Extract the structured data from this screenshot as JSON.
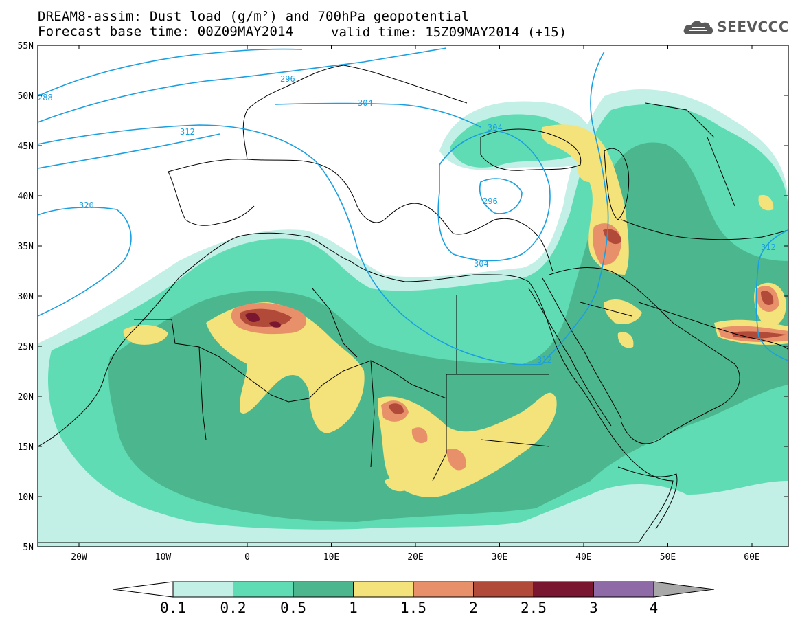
{
  "header": {
    "title_line1": "DREAM8-assim: Dust load (g/m²) and 700hPa geopotential",
    "title_line2": "Forecast base time: 00Z09MAY2014",
    "valid_time": "valid time: 15Z09MAY2014 (+15)",
    "logo_text": "SEEVCCC"
  },
  "axes": {
    "lat_labels": [
      "55N",
      "50N",
      "45N",
      "40N",
      "35N",
      "30N",
      "25N",
      "20N",
      "15N",
      "10N",
      "5N"
    ],
    "lon_labels": [
      "20W",
      "10W",
      "0",
      "10E",
      "20E",
      "30E",
      "40E",
      "50E",
      "60E"
    ]
  },
  "contours": {
    "labels": [
      "288",
      "296",
      "304",
      "312",
      "304",
      "320",
      "296",
      "304",
      "312",
      "312"
    ]
  },
  "colorbar": {
    "labels": [
      "0.1",
      "0.2",
      "0.5",
      "1",
      "1.5",
      "2",
      "2.5",
      "3",
      "4"
    ],
    "colors": [
      "#c2efe6",
      "#5fdcb4",
      "#4cb78e",
      "#f4e27a",
      "#e8906a",
      "#b24a3a",
      "#7a1630",
      "#8e6aa6",
      "#a8a8a8"
    ]
  },
  "palette": {
    "land_outline": "#000000",
    "contour": "#1a9fe0"
  }
}
